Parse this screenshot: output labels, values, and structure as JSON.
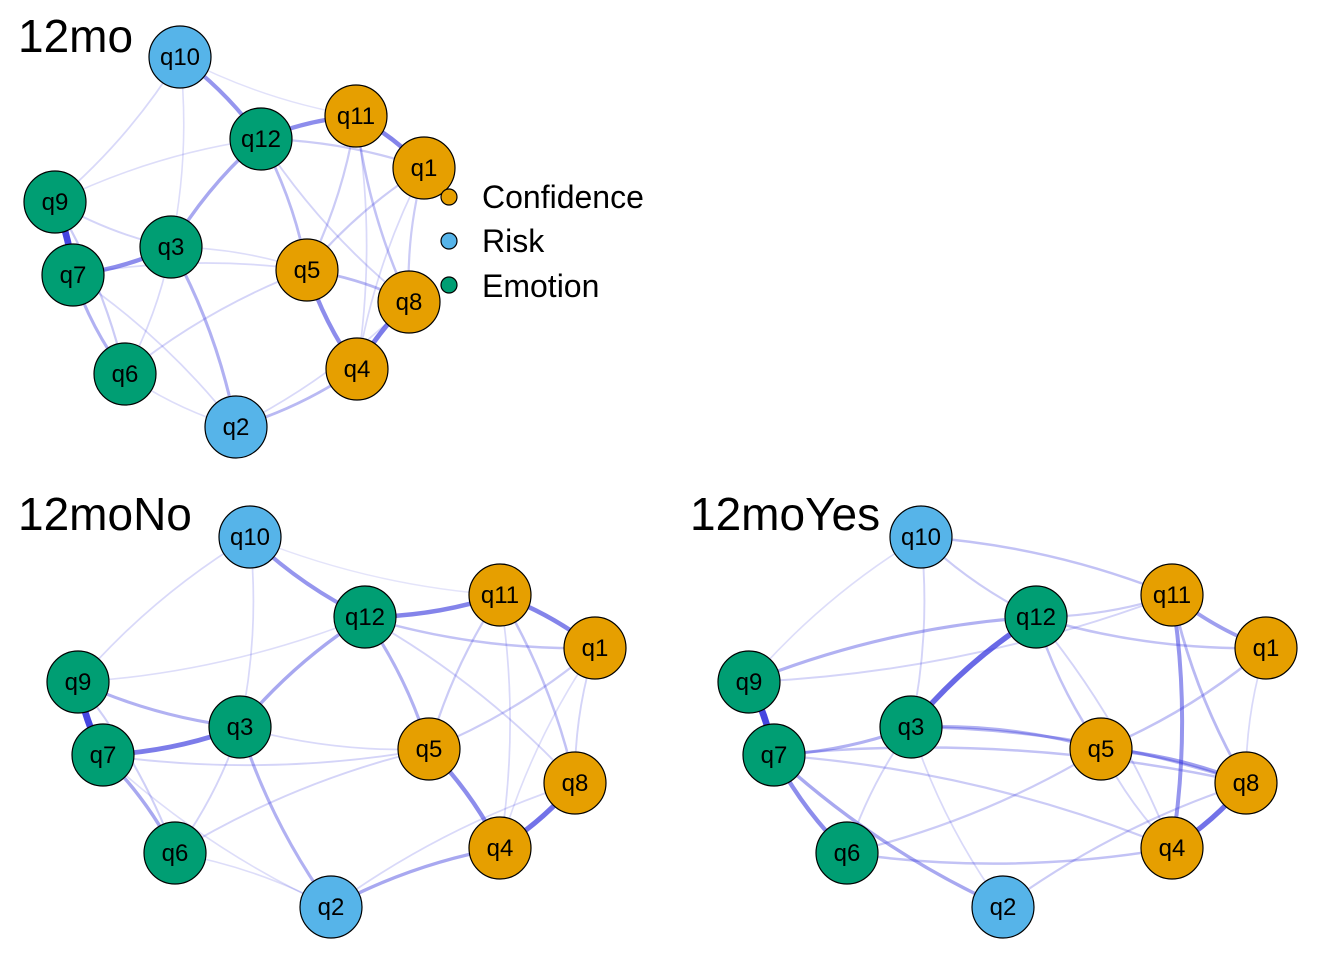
{
  "colors": {
    "Confidence": "#E69F00",
    "Risk": "#56B4E9",
    "Emotion": "#009E73",
    "edge": "#3333DD"
  },
  "legend": [
    {
      "label": "Confidence",
      "group": "Confidence"
    },
    {
      "label": "Risk",
      "group": "Risk"
    },
    {
      "label": "Emotion",
      "group": "Emotion"
    }
  ],
  "node_groups": {
    "q1": "Confidence",
    "q4": "Confidence",
    "q5": "Confidence",
    "q8": "Confidence",
    "q11": "Confidence",
    "q2": "Risk",
    "q10": "Risk",
    "q3": "Emotion",
    "q6": "Emotion",
    "q7": "Emotion",
    "q9": "Emotion",
    "q12": "Emotion"
  },
  "panels": [
    {
      "title": "12mo",
      "edges": [
        [
          "q9",
          "q7",
          0.95
        ],
        [
          "q7",
          "q3",
          0.55
        ],
        [
          "q7",
          "q6",
          0.35
        ],
        [
          "q9",
          "q6",
          0.2
        ],
        [
          "q12",
          "q3",
          0.4
        ],
        [
          "q10",
          "q12",
          0.5
        ],
        [
          "q12",
          "q11",
          0.55
        ],
        [
          "q11",
          "q1",
          0.6
        ],
        [
          "q12",
          "q5",
          0.3
        ],
        [
          "q5",
          "q4",
          0.55
        ],
        [
          "q8",
          "q4",
          0.65
        ],
        [
          "q3",
          "q2",
          0.35
        ],
        [
          "q2",
          "q4",
          0.3
        ],
        [
          "q5",
          "q8",
          0.3
        ],
        [
          "q11",
          "q8",
          0.25
        ],
        [
          "q1",
          "q5",
          0.2
        ],
        [
          "q11",
          "q5",
          0.2
        ],
        [
          "q1",
          "q8",
          0.2
        ],
        [
          "q12",
          "q1",
          0.2
        ],
        [
          "q9",
          "q3",
          0.15
        ],
        [
          "q10",
          "q9",
          0.12
        ],
        [
          "q10",
          "q3",
          0.1
        ],
        [
          "q6",
          "q5",
          0.15
        ],
        [
          "q2",
          "q8",
          0.12
        ],
        [
          "q6",
          "q2",
          0.1
        ],
        [
          "q7",
          "q5",
          0.12
        ],
        [
          "q3",
          "q5",
          0.1
        ],
        [
          "q1",
          "q4",
          0.12
        ],
        [
          "q12",
          "q8",
          0.15
        ],
        [
          "q11",
          "q4",
          0.12
        ],
        [
          "q12",
          "q9",
          0.1
        ],
        [
          "q10",
          "q11",
          0.08
        ],
        [
          "q6",
          "q3",
          0.12
        ],
        [
          "q7",
          "q2",
          0.12
        ]
      ]
    },
    {
      "title": "12moNo",
      "edges": [
        [
          "q9",
          "q7",
          0.95
        ],
        [
          "q7",
          "q3",
          0.65
        ],
        [
          "q7",
          "q6",
          0.4
        ],
        [
          "q9",
          "q6",
          0.18
        ],
        [
          "q9",
          "q3",
          0.35
        ],
        [
          "q12",
          "q3",
          0.4
        ],
        [
          "q10",
          "q12",
          0.5
        ],
        [
          "q12",
          "q11",
          0.6
        ],
        [
          "q11",
          "q1",
          0.6
        ],
        [
          "q12",
          "q5",
          0.35
        ],
        [
          "q5",
          "q4",
          0.55
        ],
        [
          "q8",
          "q4",
          0.7
        ],
        [
          "q3",
          "q2",
          0.35
        ],
        [
          "q2",
          "q4",
          0.4
        ],
        [
          "q12",
          "q1",
          0.25
        ],
        [
          "q11",
          "q8",
          0.25
        ],
        [
          "q11",
          "q5",
          0.2
        ],
        [
          "q1",
          "q5",
          0.2
        ],
        [
          "q1",
          "q8",
          0.15
        ],
        [
          "q6",
          "q5",
          0.15
        ],
        [
          "q2",
          "q8",
          0.12
        ],
        [
          "q10",
          "q9",
          0.12
        ],
        [
          "q10",
          "q3",
          0.12
        ],
        [
          "q6",
          "q2",
          0.1
        ],
        [
          "q7",
          "q5",
          0.15
        ],
        [
          "q3",
          "q5",
          0.12
        ],
        [
          "q12",
          "q8",
          0.15
        ],
        [
          "q11",
          "q4",
          0.12
        ],
        [
          "q1",
          "q4",
          0.1
        ],
        [
          "q12",
          "q9",
          0.1
        ],
        [
          "q6",
          "q3",
          0.15
        ],
        [
          "q7",
          "q2",
          0.1
        ],
        [
          "q10",
          "q11",
          0.06
        ]
      ]
    },
    {
      "title": "12moYes",
      "edges": [
        [
          "q9",
          "q7",
          0.95
        ],
        [
          "q7",
          "q6",
          0.55
        ],
        [
          "q7",
          "q2",
          0.4
        ],
        [
          "q12",
          "q3",
          0.75
        ],
        [
          "q11",
          "q4",
          0.5
        ],
        [
          "q8",
          "q4",
          0.7
        ],
        [
          "q5",
          "q8",
          0.45
        ],
        [
          "q11",
          "q1",
          0.45
        ],
        [
          "q3",
          "q5",
          0.35
        ],
        [
          "q3",
          "q8",
          0.3
        ],
        [
          "q7",
          "q3",
          0.35
        ],
        [
          "q9",
          "q12",
          0.35
        ],
        [
          "q10",
          "q11",
          0.25
        ],
        [
          "q12",
          "q1",
          0.25
        ],
        [
          "q11",
          "q8",
          0.3
        ],
        [
          "q1",
          "q5",
          0.25
        ],
        [
          "q12",
          "q5",
          0.25
        ],
        [
          "q7",
          "q8",
          0.25
        ],
        [
          "q6",
          "q5",
          0.2
        ],
        [
          "q6",
          "q4",
          0.25
        ],
        [
          "q2",
          "q8",
          0.2
        ],
        [
          "q10",
          "q12",
          0.2
        ],
        [
          "q10",
          "q3",
          0.15
        ],
        [
          "q7",
          "q4",
          0.2
        ],
        [
          "q12",
          "q11",
          0.2
        ],
        [
          "q9",
          "q11",
          0.15
        ],
        [
          "q6",
          "q3",
          0.15
        ],
        [
          "q2",
          "q3",
          0.12
        ],
        [
          "q1",
          "q8",
          0.12
        ],
        [
          "q5",
          "q4",
          0.15
        ],
        [
          "q10",
          "q9",
          0.1
        ],
        [
          "q12",
          "q4",
          0.15
        ]
      ]
    }
  ]
}
